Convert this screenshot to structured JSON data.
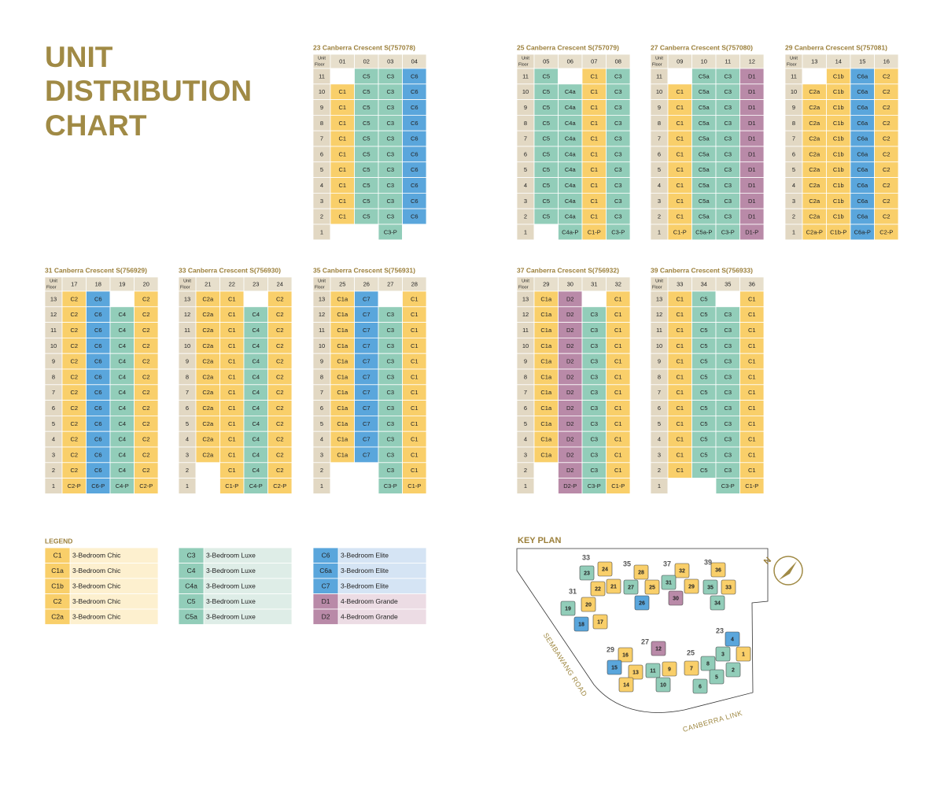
{
  "title_lines": [
    "UNIT",
    "DISTRIBUTION",
    "CHART"
  ],
  "corner_label": {
    "unit": "Unit",
    "floor": "Floor"
  },
  "blocks": [
    {
      "title": "23 Canberra Crescent S(757078)",
      "units": [
        "01",
        "02",
        "03",
        "04"
      ],
      "rows": [
        [
          11,
          null,
          "C5",
          "C3",
          "C6"
        ],
        [
          10,
          "C1",
          "C5",
          "C3",
          "C6"
        ],
        [
          9,
          "C1",
          "C5",
          "C3",
          "C6"
        ],
        [
          8,
          "C1",
          "C5",
          "C3",
          "C6"
        ],
        [
          7,
          "C1",
          "C5",
          "C3",
          "C6"
        ],
        [
          6,
          "C1",
          "C5",
          "C3",
          "C6"
        ],
        [
          5,
          "C1",
          "C5",
          "C3",
          "C6"
        ],
        [
          4,
          "C1",
          "C5",
          "C3",
          "C6"
        ],
        [
          3,
          "C1",
          "C5",
          "C3",
          "C6"
        ],
        [
          2,
          "C1",
          "C5",
          "C3",
          "C6"
        ],
        [
          1,
          null,
          null,
          "C3-P",
          null
        ]
      ]
    },
    {
      "title": "25 Canberra Crescent S(757079)",
      "units": [
        "05",
        "06",
        "07",
        "08"
      ],
      "rows": [
        [
          11,
          "C5",
          null,
          "C1",
          "C3"
        ],
        [
          10,
          "C5",
          "C4a",
          "C1",
          "C3"
        ],
        [
          9,
          "C5",
          "C4a",
          "C1",
          "C3"
        ],
        [
          8,
          "C5",
          "C4a",
          "C1",
          "C3"
        ],
        [
          7,
          "C5",
          "C4a",
          "C1",
          "C3"
        ],
        [
          6,
          "C5",
          "C4a",
          "C1",
          "C3"
        ],
        [
          5,
          "C5",
          "C4a",
          "C1",
          "C3"
        ],
        [
          4,
          "C5",
          "C4a",
          "C1",
          "C3"
        ],
        [
          3,
          "C5",
          "C4a",
          "C1",
          "C3"
        ],
        [
          2,
          "C5",
          "C4a",
          "C1",
          "C3"
        ],
        [
          1,
          null,
          "C4a-P",
          "C1-P",
          "C3-P"
        ]
      ]
    },
    {
      "title": "27 Canberra Crescent S(757080)",
      "units": [
        "09",
        "10",
        "11",
        "12"
      ],
      "rows": [
        [
          11,
          null,
          "C5a",
          "C3",
          "D1"
        ],
        [
          10,
          "C1",
          "C5a",
          "C3",
          "D1"
        ],
        [
          9,
          "C1",
          "C5a",
          "C3",
          "D1"
        ],
        [
          8,
          "C1",
          "C5a",
          "C3",
          "D1"
        ],
        [
          7,
          "C1",
          "C5a",
          "C3",
          "D1"
        ],
        [
          6,
          "C1",
          "C5a",
          "C3",
          "D1"
        ],
        [
          5,
          "C1",
          "C5a",
          "C3",
          "D1"
        ],
        [
          4,
          "C1",
          "C5a",
          "C3",
          "D1"
        ],
        [
          3,
          "C1",
          "C5a",
          "C3",
          "D1"
        ],
        [
          2,
          "C1",
          "C5a",
          "C3",
          "D1"
        ],
        [
          1,
          "C1-P",
          "C5a-P",
          "C3-P",
          "D1-P"
        ]
      ]
    },
    {
      "title": "29 Canberra Crescent S(757081)",
      "units": [
        "13",
        "14",
        "15",
        "16"
      ],
      "rows": [
        [
          11,
          null,
          "C1b",
          "C6a",
          "C2"
        ],
        [
          10,
          "C2a",
          "C1b",
          "C6a",
          "C2"
        ],
        [
          9,
          "C2a",
          "C1b",
          "C6a",
          "C2"
        ],
        [
          8,
          "C2a",
          "C1b",
          "C6a",
          "C2"
        ],
        [
          7,
          "C2a",
          "C1b",
          "C6a",
          "C2"
        ],
        [
          6,
          "C2a",
          "C1b",
          "C6a",
          "C2"
        ],
        [
          5,
          "C2a",
          "C1b",
          "C6a",
          "C2"
        ],
        [
          4,
          "C2a",
          "C1b",
          "C6a",
          "C2"
        ],
        [
          3,
          "C2a",
          "C1b",
          "C6a",
          "C2"
        ],
        [
          2,
          "C2a",
          "C1b",
          "C6a",
          "C2"
        ],
        [
          1,
          "C2a-P",
          "C1b-P",
          "C6a-P",
          "C2-P"
        ]
      ]
    },
    {
      "title": "31 Canberra Crescent S(756929)",
      "units": [
        "17",
        "18",
        "19",
        "20"
      ],
      "rows": [
        [
          13,
          "C2",
          "C6",
          null,
          "C2"
        ],
        [
          12,
          "C2",
          "C6",
          "C4",
          "C2"
        ],
        [
          11,
          "C2",
          "C6",
          "C4",
          "C2"
        ],
        [
          10,
          "C2",
          "C6",
          "C4",
          "C2"
        ],
        [
          9,
          "C2",
          "C6",
          "C4",
          "C2"
        ],
        [
          8,
          "C2",
          "C6",
          "C4",
          "C2"
        ],
        [
          7,
          "C2",
          "C6",
          "C4",
          "C2"
        ],
        [
          6,
          "C2",
          "C6",
          "C4",
          "C2"
        ],
        [
          5,
          "C2",
          "C6",
          "C4",
          "C2"
        ],
        [
          4,
          "C2",
          "C6",
          "C4",
          "C2"
        ],
        [
          3,
          "C2",
          "C6",
          "C4",
          "C2"
        ],
        [
          2,
          "C2",
          "C6",
          "C4",
          "C2"
        ],
        [
          1,
          "C2-P",
          "C6-P",
          "C4-P",
          "C2-P"
        ]
      ]
    },
    {
      "title": "33 Canberra Crescent S(756930)",
      "units": [
        "21",
        "22",
        "23",
        "24"
      ],
      "rows": [
        [
          13,
          "C2a",
          "C1",
          null,
          "C2"
        ],
        [
          12,
          "C2a",
          "C1",
          "C4",
          "C2"
        ],
        [
          11,
          "C2a",
          "C1",
          "C4",
          "C2"
        ],
        [
          10,
          "C2a",
          "C1",
          "C4",
          "C2"
        ],
        [
          9,
          "C2a",
          "C1",
          "C4",
          "C2"
        ],
        [
          8,
          "C2a",
          "C1",
          "C4",
          "C2"
        ],
        [
          7,
          "C2a",
          "C1",
          "C4",
          "C2"
        ],
        [
          6,
          "C2a",
          "C1",
          "C4",
          "C2"
        ],
        [
          5,
          "C2a",
          "C1",
          "C4",
          "C2"
        ],
        [
          4,
          "C2a",
          "C1",
          "C4",
          "C2"
        ],
        [
          3,
          "C2a",
          "C1",
          "C4",
          "C2"
        ],
        [
          2,
          null,
          "C1",
          "C4",
          "C2"
        ],
        [
          1,
          null,
          "C1-P",
          "C4-P",
          "C2-P"
        ]
      ]
    },
    {
      "title": "35 Canberra Crescent S(756931)",
      "units": [
        "25",
        "26",
        "27",
        "28"
      ],
      "rows": [
        [
          13,
          "C1a",
          "C7",
          null,
          "C1"
        ],
        [
          12,
          "C1a",
          "C7",
          "C3",
          "C1"
        ],
        [
          11,
          "C1a",
          "C7",
          "C3",
          "C1"
        ],
        [
          10,
          "C1a",
          "C7",
          "C3",
          "C1"
        ],
        [
          9,
          "C1a",
          "C7",
          "C3",
          "C1"
        ],
        [
          8,
          "C1a",
          "C7",
          "C3",
          "C1"
        ],
        [
          7,
          "C1a",
          "C7",
          "C3",
          "C1"
        ],
        [
          6,
          "C1a",
          "C7",
          "C3",
          "C1"
        ],
        [
          5,
          "C1a",
          "C7",
          "C3",
          "C1"
        ],
        [
          4,
          "C1a",
          "C7",
          "C3",
          "C1"
        ],
        [
          3,
          "C1a",
          "C7",
          "C3",
          "C1"
        ],
        [
          2,
          null,
          null,
          "C3",
          "C1"
        ],
        [
          1,
          null,
          null,
          "C3-P",
          "C1-P"
        ]
      ]
    },
    {
      "title": "37 Canberra Crescent S(756932)",
      "units": [
        "29",
        "30",
        "31",
        "32"
      ],
      "rows": [
        [
          13,
          "C1a",
          "D2",
          null,
          "C1"
        ],
        [
          12,
          "C1a",
          "D2",
          "C3",
          "C1"
        ],
        [
          11,
          "C1a",
          "D2",
          "C3",
          "C1"
        ],
        [
          10,
          "C1a",
          "D2",
          "C3",
          "C1"
        ],
        [
          9,
          "C1a",
          "D2",
          "C3",
          "C1"
        ],
        [
          8,
          "C1a",
          "D2",
          "C3",
          "C1"
        ],
        [
          7,
          "C1a",
          "D2",
          "C3",
          "C1"
        ],
        [
          6,
          "C1a",
          "D2",
          "C3",
          "C1"
        ],
        [
          5,
          "C1a",
          "D2",
          "C3",
          "C1"
        ],
        [
          4,
          "C1a",
          "D2",
          "C3",
          "C1"
        ],
        [
          3,
          "C1a",
          "D2",
          "C3",
          "C1"
        ],
        [
          2,
          null,
          "D2",
          "C3",
          "C1"
        ],
        [
          1,
          null,
          "D2-P",
          "C3-P",
          "C1-P"
        ]
      ]
    },
    {
      "title": "39 Canberra Crescent S(756933)",
      "units": [
        "33",
        "34",
        "35",
        "36"
      ],
      "rows": [
        [
          13,
          "C1",
          "C5",
          null,
          "C1"
        ],
        [
          12,
          "C1",
          "C5",
          "C3",
          "C1"
        ],
        [
          11,
          "C1",
          "C5",
          "C3",
          "C1"
        ],
        [
          10,
          "C1",
          "C5",
          "C3",
          "C1"
        ],
        [
          9,
          "C1",
          "C5",
          "C3",
          "C1"
        ],
        [
          8,
          "C1",
          "C5",
          "C3",
          "C1"
        ],
        [
          7,
          "C1",
          "C5",
          "C3",
          "C1"
        ],
        [
          6,
          "C1",
          "C5",
          "C3",
          "C1"
        ],
        [
          5,
          "C1",
          "C5",
          "C3",
          "C1"
        ],
        [
          4,
          "C1",
          "C5",
          "C3",
          "C1"
        ],
        [
          3,
          "C1",
          "C5",
          "C3",
          "C1"
        ],
        [
          2,
          "C1",
          "C5",
          "C3",
          "C1"
        ],
        [
          1,
          null,
          null,
          "C3-P",
          "C1-P"
        ]
      ]
    }
  ],
  "legend": {
    "title": "LEGEND",
    "groups": [
      [
        {
          "code": "C1",
          "name": "3-Bedroom Chic",
          "color": "#f9cf6a",
          "tint": "#fdf0cf"
        },
        {
          "code": "C1a",
          "name": "3-Bedroom Chic",
          "color": "#f9cf6a",
          "tint": "#fdf0cf"
        },
        {
          "code": "C1b",
          "name": "3-Bedroom Chic",
          "color": "#f9cf6a",
          "tint": "#fdf0cf"
        },
        {
          "code": "C2",
          "name": "3-Bedroom Chic",
          "color": "#f9cf6a",
          "tint": "#fdf0cf"
        },
        {
          "code": "C2a",
          "name": "3-Bedroom Chic",
          "color": "#f9cf6a",
          "tint": "#fdf0cf"
        }
      ],
      [
        {
          "code": "C3",
          "name": "3-Bedroom Luxe",
          "color": "#92cdb9",
          "tint": "#deede7"
        },
        {
          "code": "C4",
          "name": "3-Bedroom Luxe",
          "color": "#92cdb9",
          "tint": "#deede7"
        },
        {
          "code": "C4a",
          "name": "3-Bedroom Luxe",
          "color": "#92cdb9",
          "tint": "#deede7"
        },
        {
          "code": "C5",
          "name": "3-Bedroom Luxe",
          "color": "#92cdb9",
          "tint": "#deede7"
        },
        {
          "code": "C5a",
          "name": "3-Bedroom Luxe",
          "color": "#92cdb9",
          "tint": "#deede7"
        }
      ],
      [
        {
          "code": "C6",
          "name": "3-Bedroom Elite",
          "color": "#5aa6dc",
          "tint": "#d5e4f4"
        },
        {
          "code": "C6a",
          "name": "3-Bedroom Elite",
          "color": "#5aa6dc",
          "tint": "#d5e4f4"
        },
        {
          "code": "C7",
          "name": "3-Bedroom Elite",
          "color": "#5aa6dc",
          "tint": "#d5e4f4"
        },
        {
          "code": "D1",
          "name": "4-Bedroom Grande",
          "color": "#b98aa8",
          "tint": "#ecdce4"
        },
        {
          "code": "D2",
          "name": "4-Bedroom Grande",
          "color": "#b98aa8",
          "tint": "#ecdce4"
        }
      ]
    ]
  },
  "key_plan": {
    "title": "KEY PLAN",
    "north": "N",
    "roads": [
      "SEMBAWANG ROAD",
      "CANBERRA LINK"
    ],
    "buildings": [
      {
        "label": "33",
        "units": [
          "23",
          "24",
          "22",
          "21"
        ]
      },
      {
        "label": "31",
        "units": [
          "19",
          "20",
          "18",
          "17"
        ]
      },
      {
        "label": "35",
        "units": [
          "28",
          "27",
          "25",
          "26"
        ]
      },
      {
        "label": "37",
        "units": [
          "32",
          "31",
          "29",
          "30"
        ]
      },
      {
        "label": "39",
        "units": [
          "36",
          "35",
          "33",
          "34"
        ]
      },
      {
        "label": "29",
        "units": [
          "16",
          "15",
          "13",
          "14"
        ]
      },
      {
        "label": "27",
        "units": [
          "12",
          "11",
          "9",
          "10"
        ]
      },
      {
        "label": "25",
        "units": [
          "7",
          "8",
          "5",
          "6"
        ]
      },
      {
        "label": "23",
        "units": [
          "4",
          "3",
          "1",
          "2"
        ]
      }
    ]
  }
}
